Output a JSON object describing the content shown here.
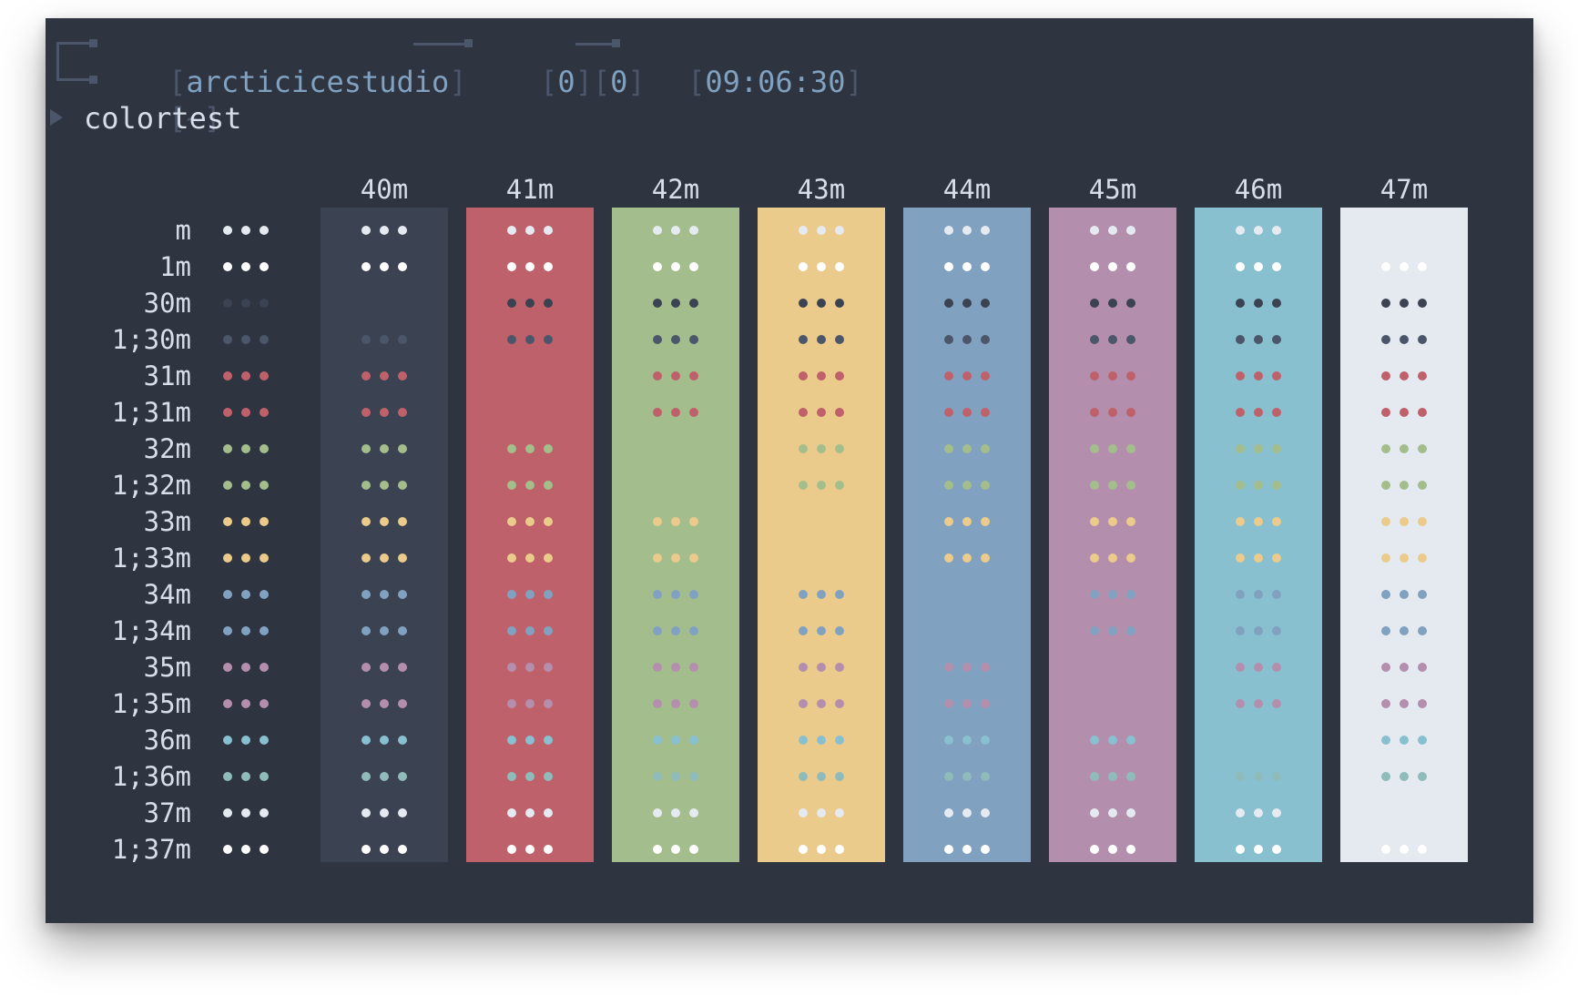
{
  "prompt": {
    "user": "arcticicestudio",
    "jobs": "0",
    "exit": "0",
    "time": "09:06:30",
    "dir": "~"
  },
  "command": "colortest",
  "dot_glyph": "•••",
  "palette": {
    "bg": "#2e3440",
    "fg": "#d8dee9",
    "black": "#3b4252",
    "bright_black": "#4c566a",
    "red": "#bf616a",
    "green": "#a3be8c",
    "yellow": "#ebcb8b",
    "blue": "#81a1c1",
    "magenta": "#b48ead",
    "cyan": "#88c0d0",
    "bright_cyan": "#8fbcbb",
    "white": "#e5e9f0",
    "bright_white": "#eceff4"
  },
  "background_columns": [
    {
      "label": "40m",
      "color": "#3b4252"
    },
    {
      "label": "41m",
      "color": "#bf616a"
    },
    {
      "label": "42m",
      "color": "#a3be8c"
    },
    {
      "label": "43m",
      "color": "#ebcb8b"
    },
    {
      "label": "44m",
      "color": "#81a1c1"
    },
    {
      "label": "45m",
      "color": "#b48ead"
    },
    {
      "label": "46m",
      "color": "#88c0d0"
    },
    {
      "label": "47m",
      "color": "#e5e9f0"
    }
  ],
  "foreground_rows": [
    {
      "label": "m",
      "color": "#e5e9f0"
    },
    {
      "label": "1m",
      "color": "#ffffff"
    },
    {
      "label": "30m",
      "color": "#3b4252"
    },
    {
      "label": "1;30m",
      "color": "#4c566a"
    },
    {
      "label": "31m",
      "color": "#bf616a"
    },
    {
      "label": "1;31m",
      "color": "#bf616a"
    },
    {
      "label": "32m",
      "color": "#a3be8c"
    },
    {
      "label": "1;32m",
      "color": "#a3be8c"
    },
    {
      "label": "33m",
      "color": "#ebcb8b"
    },
    {
      "label": "1;33m",
      "color": "#ebcb8b"
    },
    {
      "label": "34m",
      "color": "#81a1c1"
    },
    {
      "label": "1;34m",
      "color": "#81a1c1"
    },
    {
      "label": "35m",
      "color": "#b48ead"
    },
    {
      "label": "1;35m",
      "color": "#b48ead"
    },
    {
      "label": "36m",
      "color": "#88c0d0"
    },
    {
      "label": "1;36m",
      "color": "#8fbcbb"
    },
    {
      "label": "37m",
      "color": "#e5e9f0"
    },
    {
      "label": "1;37m",
      "color": "#ffffff"
    }
  ]
}
